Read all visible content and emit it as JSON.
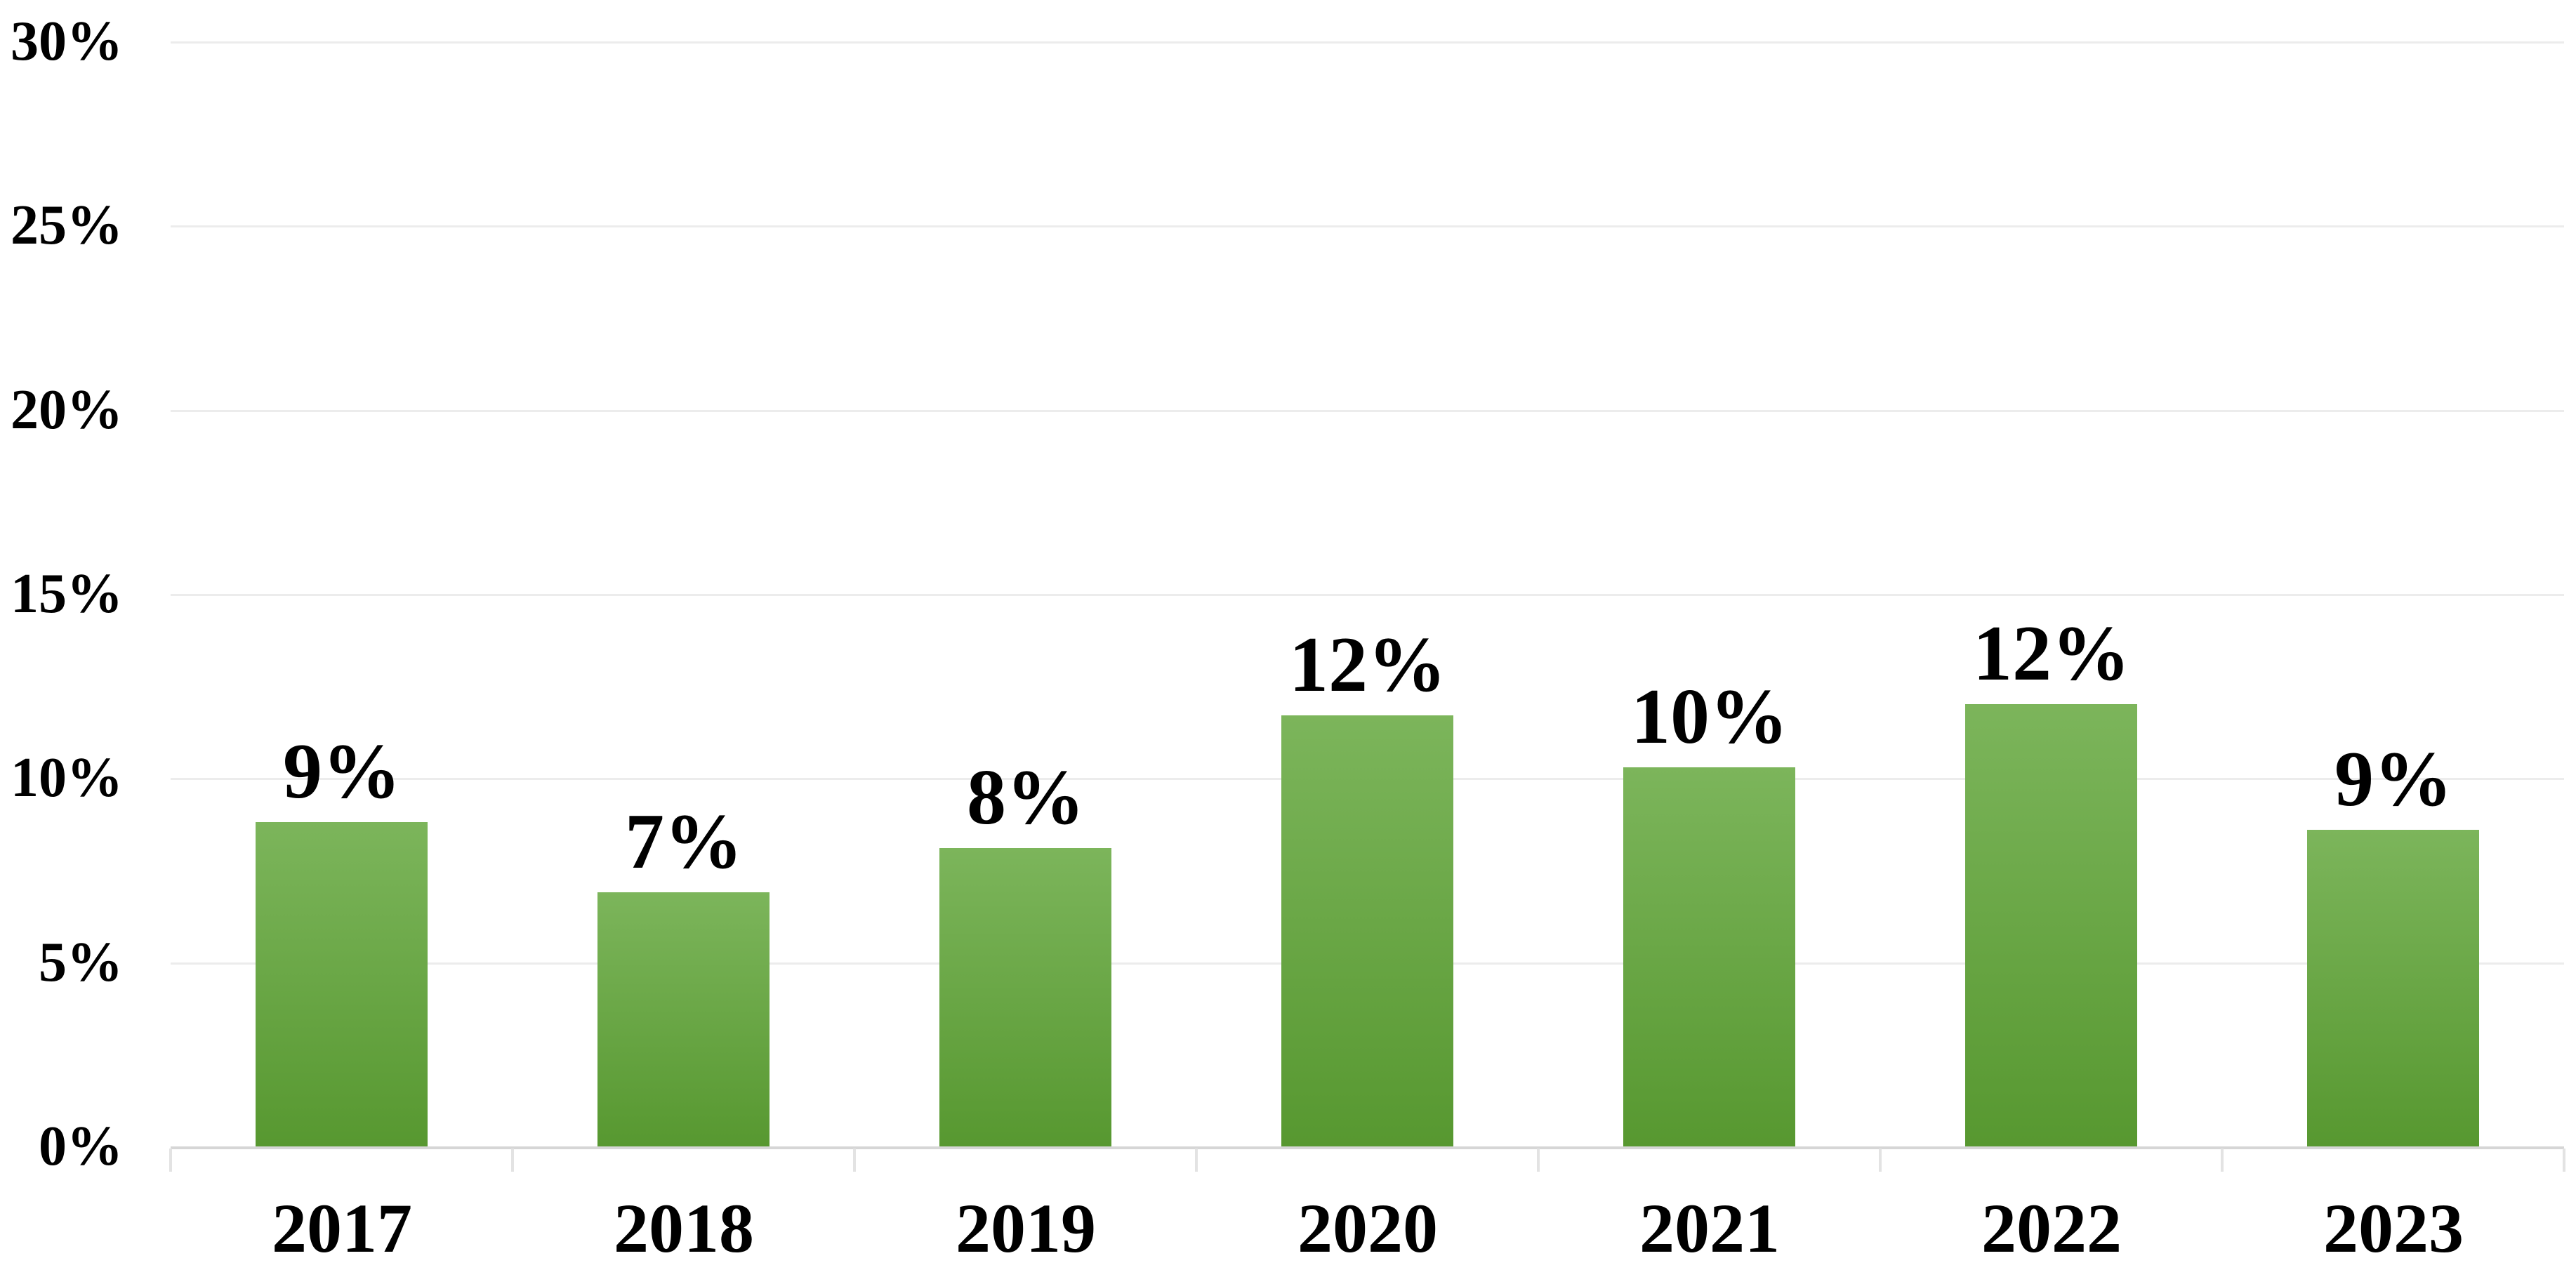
{
  "chart_data": {
    "type": "bar",
    "title": "",
    "categories": [
      "2017",
      "2018",
      "2019",
      "2020",
      "2021",
      "2022",
      "2023"
    ],
    "series": [
      {
        "name": "annual-percentage",
        "values": [
          8.8,
          6.9,
          8.1,
          11.7,
          10.3,
          12.0,
          8.6
        ],
        "data_labels": [
          "9%",
          "7%",
          "8%",
          "12%",
          "10%",
          "12%",
          "9%"
        ]
      }
    ],
    "xlabel": "",
    "ylabel": "",
    "y_axis": {
      "min": 0,
      "max": 30,
      "step": 5,
      "tick_labels": [
        "0%",
        "5%",
        "10%",
        "15%",
        "20%",
        "25%",
        "30%"
      ]
    },
    "grid": true,
    "legend": false,
    "bar_gap_ratio": 0.5,
    "colors": {
      "bar_gradient_top": "#7cb55b",
      "bar_gradient_bottom": "#579830",
      "gridline": "#ececec",
      "axis_line": "#d6d6d6",
      "tick": "#e3e3e3",
      "label_text": "#000000",
      "background": "#ffffff"
    }
  }
}
